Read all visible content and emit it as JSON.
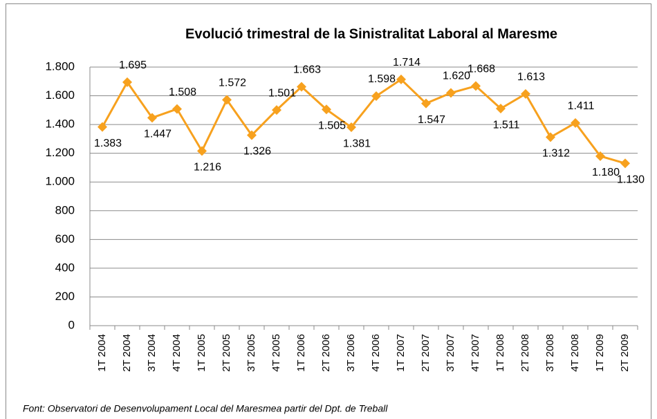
{
  "chart_data": {
    "type": "line",
    "title": "Evolució trimestral de la Sinistralitat Laboral al Maresme",
    "source": "Font: Observatori de Desenvolupament Local del Maresmea partir del Dpt. de Treball",
    "categories": [
      "1T 2004",
      "2T 2004",
      "3T 2004",
      "4T 2004",
      "1T 2005",
      "2T 2005",
      "3T 2005",
      "4T 2005",
      "1T 2006",
      "2T 2006",
      "3T 2006",
      "4T 2006",
      "1T 2007",
      "2T 2007",
      "3T 2007",
      "4T 2007",
      "1T 2008",
      "2T 2008",
      "3T 2008",
      "4T 2008",
      "1T 2009",
      "2T 2009"
    ],
    "series": [
      {
        "name": "Sinistralitat Laboral",
        "color": "#f7a11e",
        "values": [
          1383,
          1695,
          1447,
          1508,
          1216,
          1572,
          1326,
          1501,
          1663,
          1505,
          1381,
          1598,
          1714,
          1547,
          1620,
          1668,
          1511,
          1613,
          1312,
          1411,
          1180,
          1130
        ],
        "value_labels": [
          "1.383",
          "1.695",
          "1.447",
          "1.508",
          "1.216",
          "1.572",
          "1.326",
          "1.501",
          "1.663",
          "1.505",
          "1.381",
          "1.598",
          "1.714",
          "1.547",
          "1.620",
          "1.668",
          "1.511",
          "1.613",
          "1.312",
          "1.411",
          "1.180",
          "1.130"
        ]
      }
    ],
    "ylim": [
      0,
      1800
    ],
    "yticks": [
      0,
      200,
      400,
      600,
      800,
      {
        "value": 1000,
        "label": "1.000"
      },
      {
        "value": 1200,
        "label": "1.200"
      },
      {
        "value": 1400,
        "label": "1.400"
      },
      {
        "value": 1600,
        "label": "1.600"
      },
      {
        "value": 1800,
        "label": "1.800"
      }
    ],
    "grid": true
  }
}
